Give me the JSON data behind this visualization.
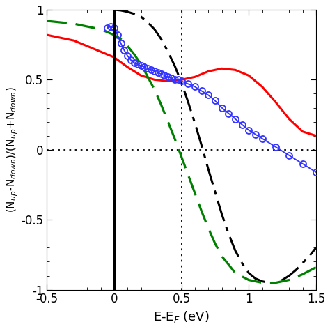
{
  "xlim": [
    -0.5,
    1.5
  ],
  "ylim": [
    -1.0,
    1.0
  ],
  "xlabel": "E-E$_F$ (eV)",
  "ylabel": "(N$_{up}$-N$_{down}$)/(N$_{up}$+N$_{down}$)",
  "vline_x": 0.0,
  "dotted_vline_x": 0.5,
  "dotted_hline_y": 0.0,
  "xticks": [
    -0.5,
    0.0,
    0.5,
    1.0,
    1.5
  ],
  "yticks": [
    -1.0,
    -0.5,
    0.0,
    0.5,
    1.0
  ],
  "background": "#ffffff",
  "red_line": {
    "color": "#ff0000",
    "x": [
      -0.5,
      -0.45,
      -0.4,
      -0.35,
      -0.3,
      -0.25,
      -0.2,
      -0.15,
      -0.1,
      -0.05,
      0.0,
      0.1,
      0.2,
      0.3,
      0.4,
      0.5,
      0.6,
      0.7,
      0.8,
      0.9,
      1.0,
      1.1,
      1.2,
      1.3,
      1.4,
      1.5
    ],
    "y": [
      0.82,
      0.81,
      0.8,
      0.79,
      0.78,
      0.76,
      0.74,
      0.72,
      0.7,
      0.68,
      0.66,
      0.59,
      0.53,
      0.5,
      0.49,
      0.5,
      0.52,
      0.56,
      0.58,
      0.57,
      0.53,
      0.45,
      0.34,
      0.22,
      0.13,
      0.1
    ]
  },
  "green_dashed_line": {
    "color": "#008000",
    "x": [
      -0.5,
      -0.4,
      -0.3,
      -0.2,
      -0.1,
      0.0,
      0.05,
      0.1,
      0.15,
      0.2,
      0.25,
      0.3,
      0.35,
      0.4,
      0.45,
      0.5,
      0.55,
      0.6,
      0.65,
      0.7,
      0.75,
      0.8,
      0.9,
      1.0,
      1.1,
      1.2,
      1.3,
      1.4,
      1.5
    ],
    "y": [
      0.92,
      0.91,
      0.9,
      0.88,
      0.86,
      0.82,
      0.79,
      0.74,
      0.68,
      0.61,
      0.52,
      0.43,
      0.32,
      0.2,
      0.08,
      -0.05,
      -0.18,
      -0.31,
      -0.44,
      -0.56,
      -0.67,
      -0.76,
      -0.88,
      -0.93,
      -0.95,
      -0.95,
      -0.93,
      -0.89,
      -0.84
    ]
  },
  "black_dashdot_line": {
    "color": "#000000",
    "x": [
      0.0,
      0.05,
      0.1,
      0.15,
      0.2,
      0.25,
      0.3,
      0.35,
      0.4,
      0.45,
      0.5,
      0.55,
      0.6,
      0.65,
      0.7,
      0.75,
      0.8,
      0.85,
      0.9,
      0.95,
      1.0,
      1.05,
      1.1,
      1.15,
      1.2,
      1.25,
      1.3,
      1.35,
      1.4,
      1.45,
      1.5
    ],
    "y": [
      1.0,
      0.995,
      0.985,
      0.97,
      0.95,
      0.91,
      0.86,
      0.79,
      0.7,
      0.6,
      0.48,
      0.34,
      0.19,
      0.03,
      -0.14,
      -0.3,
      -0.46,
      -0.6,
      -0.72,
      -0.81,
      -0.88,
      -0.92,
      -0.94,
      -0.95,
      -0.95,
      -0.93,
      -0.9,
      -0.86,
      -0.81,
      -0.76,
      -0.7
    ]
  },
  "blue_circles": {
    "color": "#3333ff",
    "x": [
      -0.05,
      -0.025,
      0.0,
      0.025,
      0.05,
      0.075,
      0.1,
      0.125,
      0.15,
      0.175,
      0.2,
      0.225,
      0.25,
      0.275,
      0.3,
      0.325,
      0.35,
      0.375,
      0.4,
      0.425,
      0.45,
      0.475,
      0.5,
      0.55,
      0.6,
      0.65,
      0.7,
      0.75,
      0.8,
      0.85,
      0.9,
      0.95,
      1.0,
      1.05,
      1.1,
      1.2,
      1.3,
      1.4,
      1.5
    ],
    "y": [
      0.87,
      0.88,
      0.87,
      0.82,
      0.76,
      0.71,
      0.67,
      0.64,
      0.62,
      0.61,
      0.6,
      0.59,
      0.58,
      0.57,
      0.56,
      0.55,
      0.54,
      0.53,
      0.52,
      0.51,
      0.5,
      0.5,
      0.49,
      0.47,
      0.45,
      0.42,
      0.39,
      0.35,
      0.3,
      0.26,
      0.22,
      0.18,
      0.14,
      0.11,
      0.08,
      0.02,
      -0.04,
      -0.1,
      -0.16
    ]
  }
}
